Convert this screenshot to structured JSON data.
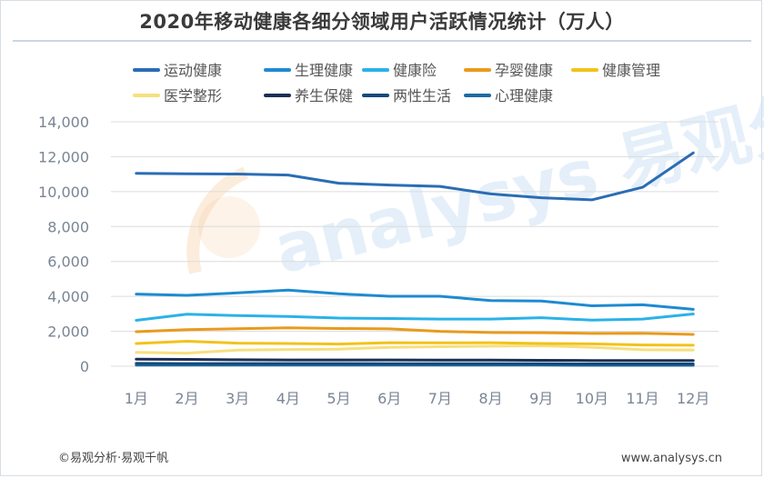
{
  "title": "2020年移动健康各细分领域用户活跃情况统计（万人）",
  "footer": {
    "source": "©易观分析·易观千帆",
    "website": "www.analysys.cn"
  },
  "watermark": {
    "text": "analysys 易观分析",
    "color": "#f5c89a"
  },
  "chart_data": {
    "type": "line",
    "title": "2020年移动健康各细分领域用户活跃情况统计（万人）",
    "xlabel": "",
    "ylabel": "",
    "categories": [
      "1月",
      "2月",
      "3月",
      "4月",
      "5月",
      "6月",
      "7月",
      "8月",
      "9月",
      "10月",
      "11月",
      "12月"
    ],
    "ylim": [
      0,
      14000
    ],
    "yticks": [
      0,
      2000,
      4000,
      6000,
      8000,
      10000,
      12000,
      14000
    ],
    "ytick_labels": [
      "0",
      "2,000",
      "4,000",
      "6,000",
      "8,000",
      "10,000",
      "12,000",
      "14,000"
    ],
    "grid": true,
    "legend_position": "top",
    "series": [
      {
        "name": "运动健康",
        "color": "#2a6db5",
        "values": [
          11050,
          11020,
          11010,
          10950,
          10480,
          10380,
          10300,
          9870,
          9650,
          9530,
          10250,
          12220
        ]
      },
      {
        "name": "生理健康",
        "color": "#1f8ad1",
        "values": [
          4130,
          4060,
          4200,
          4360,
          4150,
          4010,
          4010,
          3760,
          3730,
          3460,
          3520,
          3260
        ]
      },
      {
        "name": "健康险",
        "color": "#2ab2e8",
        "values": [
          2630,
          2980,
          2900,
          2850,
          2760,
          2730,
          2700,
          2700,
          2780,
          2640,
          2700,
          2990
        ]
      },
      {
        "name": "孕婴健康",
        "color": "#e99a1d",
        "values": [
          1980,
          2090,
          2150,
          2200,
          2160,
          2140,
          2000,
          1930,
          1920,
          1880,
          1890,
          1820
        ]
      },
      {
        "name": "健康管理",
        "color": "#f3c21a",
        "values": [
          1300,
          1430,
          1320,
          1300,
          1270,
          1350,
          1340,
          1350,
          1300,
          1280,
          1220,
          1200
        ]
      },
      {
        "name": "医学整形",
        "color": "#f7df7e",
        "values": [
          790,
          750,
          920,
          960,
          980,
          1080,
          1120,
          1150,
          1170,
          1090,
          940,
          920
        ]
      },
      {
        "name": "养生保健",
        "color": "#1b2f55",
        "values": [
          400,
          390,
          370,
          360,
          360,
          360,
          350,
          350,
          340,
          330,
          330,
          330
        ]
      },
      {
        "name": "两性生活",
        "color": "#14497a",
        "values": [
          160,
          150,
          150,
          150,
          150,
          140,
          140,
          140,
          140,
          130,
          130,
          130
        ]
      },
      {
        "name": "心理健康",
        "color": "#1e6aa3",
        "values": [
          60,
          60,
          60,
          60,
          60,
          60,
          60,
          60,
          60,
          50,
          50,
          50
        ]
      }
    ]
  }
}
